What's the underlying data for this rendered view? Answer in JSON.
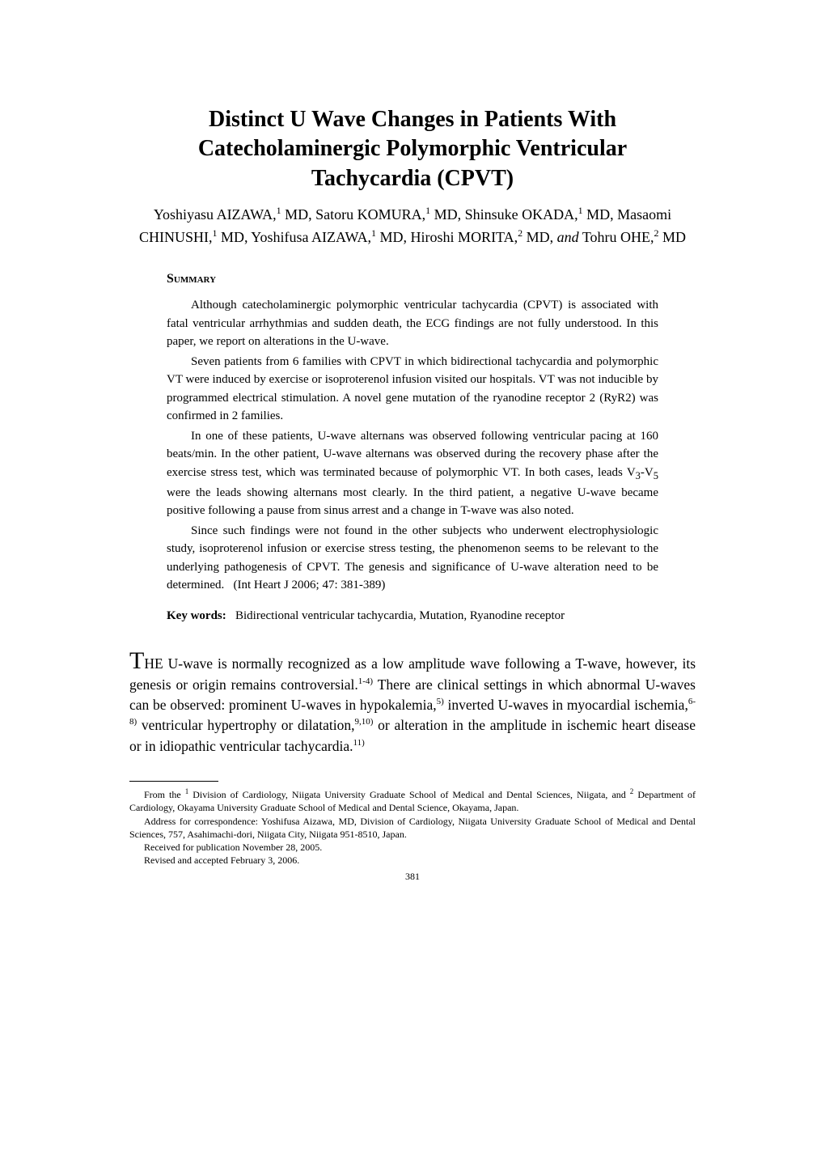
{
  "title_line1": "Distinct U Wave Changes in Patients With",
  "title_line2": "Catecholaminergic Polymorphic Ventricular",
  "title_line3": "Tachycardia (CPVT)",
  "authors_html": "Yoshiyasu A<span class='surname'>IZAWA</span>,<sup>1</sup> MD, Satoru K<span class='surname'>OMURA</span>,<sup>1</sup> MD, Shinsuke O<span class='surname'>KADA</span>,<sup>1</sup> MD, Masaomi C<span class='surname'>HINUSHI</span>,<sup>1</sup> MD, Yoshifusa A<span class='surname'>IZAWA</span>,<sup>1</sup> MD, Hiroshi M<span class='surname'>ORITA</span>,<sup>2</sup> MD, <span class='and'>and</span> Tohru O<span class='surname'>HE</span>,<sup>2</sup> MD",
  "summary_label": "Summary",
  "abstract": {
    "p1": "Although catecholaminergic polymorphic ventricular tachycardia (CPVT) is associated with fatal ventricular arrhythmias and sudden death, the ECG findings are not fully understood. In this paper, we report on alterations in the U-wave.",
    "p2": "Seven patients from 6 families with CPVT in which bidirectional tachycardia and polymorphic VT were induced by exercise or isoproterenol infusion visited our hospitals. VT was not inducible by programmed electrical stimulation. A novel gene mutation of the ryanodine receptor 2 (RyR2) was confirmed in 2 families.",
    "p3_html": "In one of these patients, U-wave alternans was observed following ventricular pacing at 160 beats/min. In the other patient, U-wave alternans was observed during the recovery phase after the exercise stress test, which was terminated because of polymorphic VT. In both cases, leads V<sub>3</sub>-V<sub>5</sub> were the leads showing alternans most clearly. In the third patient, a negative U-wave became positive following a pause from sinus arrest and a change in T-wave was also noted.",
    "p4": "Since such findings were not found in the other subjects who underwent electrophysiologic study, isoproterenol infusion or exercise stress testing, the phenomenon seems to be relevant to the underlying pathogenesis of CPVT. The genesis and significance of U-wave alteration need to be determined.",
    "citation": "(Int Heart J 2006; 47: 381-389)"
  },
  "keywords_label": "Key words:",
  "keywords_text": "Bidirectional ventricular tachycardia, Mutation, Ryanodine receptor",
  "body_html": "<span class='dropcap'>T</span><span style='font-variant:small-caps'>HE</span> U-wave is normally recognized as a low amplitude wave following a T-wave, however, its genesis or origin remains controversial.<sup>1-4)</sup> There are clinical settings in which abnormal U-waves can be observed: prominent U-waves in hypokalemia,<sup>5)</sup> inverted U-waves in myocardial ischemia,<sup>6-8)</sup> ventricular hypertrophy or dilatation,<sup>9,10)</sup> or alteration in the amplitude in ischemic heart disease or in idiopathic ventricular tachycardia.<sup>11)</sup>",
  "footnotes": {
    "f1_html": "From the <sup>1</sup> Division of Cardiology, Niigata University Graduate School of Medical and Dental Sciences, Niigata, and <sup>2</sup> Department of Cardiology, Okayama University Graduate School of Medical and Dental Science, Okayama, Japan.",
    "f2": "Address for correspondence: Yoshifusa Aizawa, MD, Division of Cardiology, Niigata University Graduate School of Medical and Dental Sciences, 757, Asahimachi-dori, Niigata City, Niigata 951-8510, Japan.",
    "f3": "Received for publication November 28, 2005.",
    "f4": "Revised and accepted February 3, 2006."
  },
  "page_number": "381"
}
